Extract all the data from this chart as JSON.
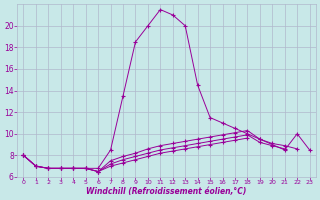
{
  "x": [
    0,
    1,
    2,
    3,
    4,
    5,
    6,
    7,
    8,
    9,
    10,
    11,
    12,
    13,
    14,
    15,
    16,
    17,
    18,
    19,
    20,
    21,
    22,
    23
  ],
  "line1": [
    8.0,
    7.0,
    6.8,
    6.8,
    6.8,
    6.8,
    6.8,
    8.5,
    13.5,
    18.5,
    20.0,
    21.5,
    21.0,
    20.0,
    14.5,
    11.5,
    11.0,
    10.5,
    10.0,
    9.5,
    9.0,
    8.5,
    10.0,
    8.5
  ],
  "line2": [
    8.0,
    7.0,
    6.8,
    6.8,
    6.8,
    6.8,
    6.5,
    7.5,
    7.9,
    8.2,
    8.6,
    8.9,
    9.1,
    9.3,
    9.5,
    9.7,
    9.9,
    10.1,
    10.3,
    9.5,
    9.1,
    8.9,
    8.6,
    null
  ],
  "line3": [
    8.0,
    7.0,
    6.8,
    6.8,
    6.8,
    6.8,
    6.5,
    7.2,
    7.6,
    7.9,
    8.2,
    8.5,
    8.7,
    8.9,
    9.1,
    9.3,
    9.5,
    9.7,
    9.9,
    9.2,
    8.9,
    8.6,
    null,
    null
  ],
  "line4": [
    8.0,
    7.0,
    6.8,
    6.8,
    6.8,
    6.8,
    6.5,
    7.0,
    7.3,
    7.6,
    7.9,
    8.2,
    8.4,
    8.6,
    8.8,
    9.0,
    9.2,
    9.4,
    9.6,
    null,
    null,
    null,
    null,
    null
  ],
  "bg_color": "#c8e8e8",
  "line_color": "#990099",
  "grid_color": "#b0b8cc",
  "xlabel": "Windchill (Refroidissement éolien,°C)",
  "xlim": [
    -0.5,
    23.5
  ],
  "ylim": [
    6,
    22
  ],
  "yticks": [
    6,
    8,
    10,
    12,
    14,
    16,
    18,
    20
  ],
  "xticks": [
    0,
    1,
    2,
    3,
    4,
    5,
    6,
    7,
    8,
    9,
    10,
    11,
    12,
    13,
    14,
    15,
    16,
    17,
    18,
    19,
    20,
    21,
    22,
    23
  ]
}
